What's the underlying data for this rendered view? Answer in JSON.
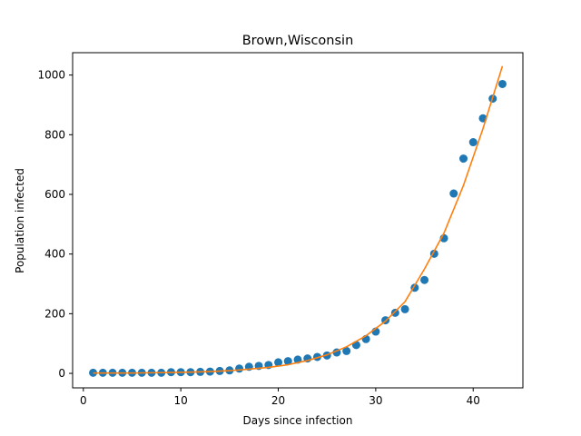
{
  "chart_data": {
    "type": "scatter",
    "title": "Brown,Wisconsin",
    "xlabel": "Days since infection",
    "ylabel": "Population infected",
    "xlim": [
      -1.1,
      45.1
    ],
    "ylim": [
      -48.6,
      1075
    ],
    "xticks": [
      0,
      10,
      20,
      30,
      40
    ],
    "yticks": [
      0,
      200,
      400,
      600,
      800,
      1000
    ],
    "grid": false,
    "series": [
      {
        "kind": "points",
        "color": "#1f77b4",
        "x": [
          1,
          2,
          3,
          4,
          5,
          6,
          7,
          8,
          9,
          10,
          11,
          12,
          13,
          14,
          15,
          16,
          17,
          18,
          19,
          20,
          21,
          22,
          23,
          24,
          25,
          26,
          27,
          28,
          29,
          30,
          31,
          32,
          33,
          34,
          35,
          36,
          37,
          38,
          39,
          40,
          41,
          42,
          43
        ],
        "y": [
          2,
          2,
          2,
          2,
          2,
          2,
          2,
          2,
          4,
          4,
          4,
          5,
          6,
          8,
          10,
          16,
          22,
          25,
          28,
          37,
          41,
          46,
          50,
          55,
          60,
          70,
          75,
          95,
          115,
          140,
          178,
          203,
          215,
          287,
          313,
          401,
          453,
          603,
          720,
          775,
          855,
          921,
          970
        ]
      },
      {
        "kind": "fit-curve",
        "color": "#ff7f0e",
        "x": [
          1,
          3,
          5,
          7,
          9,
          11,
          13,
          15,
          17,
          19,
          21,
          23,
          25,
          27,
          29,
          31,
          33,
          35,
          37,
          39,
          41,
          43
        ],
        "y": [
          1,
          1,
          1,
          2,
          3,
          4,
          6,
          9,
          14,
          20,
          29,
          43,
          62,
          89,
          126,
          175,
          240,
          350,
          470,
          630,
          820,
          1030
        ]
      }
    ]
  }
}
